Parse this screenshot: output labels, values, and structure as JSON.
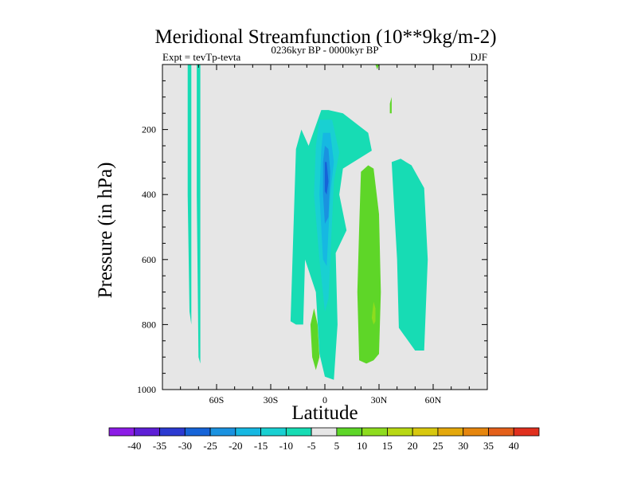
{
  "chart_data": {
    "type": "filled-contour",
    "title": "Meridional Streamfunction (10**9kg/m-2)",
    "left_label": "Expt = tevTp-tevta",
    "center_label": "0236kyr BP - 0000kyr BP",
    "right_label": "DJF",
    "xlabel": "Latitude",
    "ylabel": "Pressure (in hPa)",
    "xlim": [
      -90,
      90
    ],
    "ylim": [
      1000,
      0
    ],
    "x_ticks": [
      {
        "value": -60,
        "label": "60S"
      },
      {
        "value": -30,
        "label": "30S"
      },
      {
        "value": 0,
        "label": "0"
      },
      {
        "value": 30,
        "label": "30N"
      },
      {
        "value": 60,
        "label": "60N"
      }
    ],
    "y_ticks": [
      {
        "value": 200,
        "label": "200"
      },
      {
        "value": 400,
        "label": "400"
      },
      {
        "value": 600,
        "label": "600"
      },
      {
        "value": 800,
        "label": "800"
      },
      {
        "value": 1000,
        "label": "1000"
      }
    ],
    "background_color": "#e6e6e6",
    "colorbar": {
      "levels": [
        "-40",
        "-35",
        "-30",
        "-25",
        "-20",
        "-15",
        "-10",
        "-5",
        "5",
        "10",
        "15",
        "20",
        "25",
        "30",
        "35",
        "40"
      ],
      "colors": [
        "#8c1ce6",
        "#5e1fd6",
        "#2c3ad1",
        "#1664d8",
        "#1a92e0",
        "#16b8e2",
        "#19d0d2",
        "#17dcb4",
        "#e6e6e6",
        "#5ed628",
        "#8edc1e",
        "#b8d814",
        "#d8c80e",
        "#e4a80c",
        "#e6860e",
        "#e4601a",
        "#e0301e"
      ]
    },
    "regions": [
      {
        "name": "neg-band-75s",
        "level": "-10 to -5",
        "color": "#17dcb4",
        "points": [
          [
            -76,
            0
          ],
          [
            -74,
            0
          ],
          [
            -74,
            400
          ],
          [
            -74,
            800
          ],
          [
            -75,
            760
          ],
          [
            -76,
            400
          ]
        ]
      },
      {
        "name": "neg-band-70s",
        "level": "-10 to -5",
        "color": "#17dcb4",
        "points": [
          [
            -71,
            0
          ],
          [
            -69,
            0
          ],
          [
            -69,
            400
          ],
          [
            -69,
            920
          ],
          [
            -70,
            900
          ],
          [
            -71,
            400
          ]
        ]
      },
      {
        "name": "neg-broad-equatorial",
        "level": "-10 to -5",
        "color": "#17dcb4",
        "points": [
          [
            -19,
            790
          ],
          [
            -16,
            260
          ],
          [
            -13,
            200
          ],
          [
            -9,
            250
          ],
          [
            -2,
            140
          ],
          [
            2,
            140
          ],
          [
            10,
            150
          ],
          [
            24,
            210
          ],
          [
            26,
            265
          ],
          [
            10,
            320
          ],
          [
            8,
            400
          ],
          [
            12,
            510
          ],
          [
            6,
            580
          ],
          [
            7,
            800
          ],
          [
            5,
            970
          ],
          [
            0,
            960
          ],
          [
            -3,
            890
          ],
          [
            -5,
            700
          ],
          [
            -11,
            600
          ],
          [
            -12,
            800
          ],
          [
            -16,
            800
          ],
          [
            -19,
            790
          ]
        ]
      },
      {
        "name": "neg-core-outer",
        "level": "-15 to -10",
        "color": "#19d0d2",
        "points": [
          [
            -3,
            170
          ],
          [
            4,
            170
          ],
          [
            8,
            270
          ],
          [
            5,
            360
          ],
          [
            2,
            720
          ],
          [
            0,
            760
          ],
          [
            -3,
            600
          ],
          [
            -6,
            400
          ],
          [
            -5,
            250
          ]
        ]
      },
      {
        "name": "neg-core-mid",
        "level": "-20 to -15",
        "color": "#16b8e2",
        "points": [
          [
            -1,
            210
          ],
          [
            3,
            210
          ],
          [
            5,
            300
          ],
          [
            3,
            400
          ],
          [
            1,
            620
          ],
          [
            -1,
            600
          ],
          [
            -3,
            400
          ],
          [
            -2,
            260
          ]
        ]
      },
      {
        "name": "neg-core-inner",
        "level": "-25 to -20",
        "color": "#1a92e0",
        "points": [
          [
            0,
            250
          ],
          [
            2,
            260
          ],
          [
            3,
            330
          ],
          [
            2,
            470
          ],
          [
            0,
            490
          ],
          [
            -1,
            400
          ],
          [
            -1,
            300
          ]
        ]
      },
      {
        "name": "neg-core-max",
        "level": "-30 to -25",
        "color": "#1664d8",
        "points": [
          [
            0,
            300
          ],
          [
            1,
            300
          ],
          [
            2,
            360
          ],
          [
            1,
            400
          ],
          [
            0,
            390
          ]
        ]
      },
      {
        "name": "neg-cell-50n",
        "level": "-10 to -5",
        "color": "#17dcb4",
        "points": [
          [
            37,
            300
          ],
          [
            42,
            290
          ],
          [
            48,
            310
          ],
          [
            55,
            380
          ],
          [
            57,
            600
          ],
          [
            55,
            880
          ],
          [
            50,
            880
          ],
          [
            41,
            810
          ],
          [
            40,
            600
          ],
          [
            38,
            400
          ]
        ]
      },
      {
        "name": "pos-cell-10s",
        "level": "5 to 10",
        "color": "#5ed628",
        "points": [
          [
            -6,
            750
          ],
          [
            -4,
            800
          ],
          [
            -3,
            900
          ],
          [
            -5,
            940
          ],
          [
            -7,
            900
          ],
          [
            -8,
            800
          ]
        ]
      },
      {
        "name": "pos-cell-25n",
        "level": "5 to 10",
        "color": "#5ed628",
        "points": [
          [
            20,
            330
          ],
          [
            24,
            310
          ],
          [
            27,
            320
          ],
          [
            30,
            460
          ],
          [
            31,
            700
          ],
          [
            30,
            890
          ],
          [
            27,
            910
          ],
          [
            23,
            920
          ],
          [
            19,
            910
          ],
          [
            18,
            700
          ],
          [
            19,
            500
          ]
        ]
      },
      {
        "name": "pos-inner-25n",
        "level": "10 to 15",
        "color": "#8edc1e",
        "points": [
          [
            27,
            730
          ],
          [
            28,
            750
          ],
          [
            28,
            790
          ],
          [
            27,
            800
          ],
          [
            26,
            780
          ]
        ]
      },
      {
        "name": "pos-small-35n",
        "level": "5 to 10",
        "color": "#5ed628",
        "points": [
          [
            36,
            120
          ],
          [
            37,
            100
          ],
          [
            37,
            150
          ],
          [
            36,
            150
          ]
        ]
      },
      {
        "name": "pos-top-28n",
        "level": "5 to 10",
        "color": "#5ed628",
        "points": [
          [
            28,
            0
          ],
          [
            30,
            0
          ],
          [
            29,
            15
          ]
        ]
      }
    ]
  }
}
